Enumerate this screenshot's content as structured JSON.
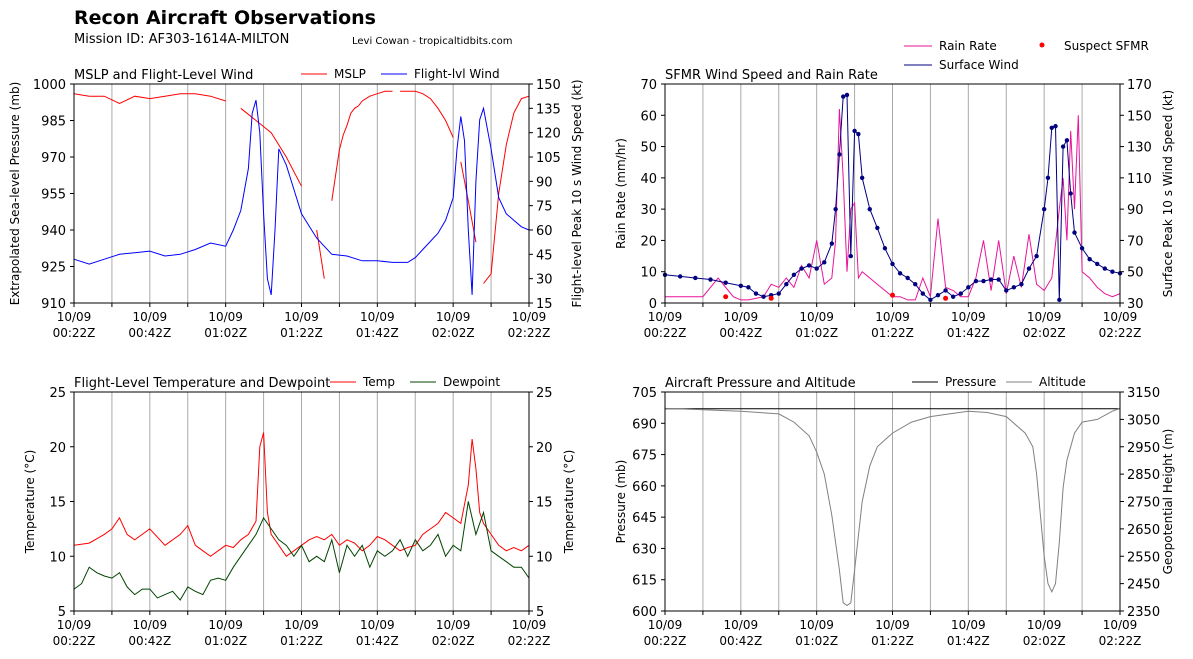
{
  "header": {
    "title": "Recon Aircraft Observations",
    "mission": "Mission ID: AF303-1614A-MILTON",
    "credit": "Levi Cowan - tropicaltidbits.com"
  },
  "colors": {
    "mslp": "#ff0000",
    "flwind": "#0000ff",
    "rain": "#e8149a",
    "sfmr": "#000080",
    "suspect": "#ff0000",
    "temp": "#ff0000",
    "dew": "#004400",
    "pres": "#000000",
    "alt": "#808080",
    "grid": "#aaaaaa"
  },
  "x_ticks": [
    "10/09 00:22Z",
    "10/09 00:42Z",
    "10/09 01:02Z",
    "10/09 01:22Z",
    "10/09 01:42Z",
    "10/09 02:02Z",
    "10/09 02:22Z"
  ],
  "top_legend": {
    "rain": "Rain Rate",
    "sfmr": "Surface Wind",
    "suspect": "Suspect SFMR"
  },
  "chart_data": [
    {
      "id": "p1",
      "type": "line",
      "title": "MSLP and Flight-Level Wind",
      "xlim": [
        0,
        120
      ],
      "ylabel": "Extrapolated Sea-level Pressure (mb)",
      "y2label": "Flight-level Peak 10 s Wind Speed (kt)",
      "ylim": [
        910,
        1000
      ],
      "y2lim": [
        15,
        150
      ],
      "yticks": [
        910,
        925,
        940,
        955,
        970,
        985,
        1000
      ],
      "y2ticks": [
        15,
        30,
        45,
        60,
        75,
        90,
        105,
        120,
        135,
        150
      ],
      "series": [
        {
          "name": "MSLP",
          "axis": "left",
          "color": "#ff0000",
          "x": [
            0,
            4,
            8,
            12,
            16,
            20,
            24,
            28,
            32,
            36,
            40,
            44,
            48,
            52,
            56,
            60,
            62,
            64,
            66,
            68,
            70,
            71,
            72,
            73,
            74,
            75,
            76,
            78,
            80,
            82,
            84,
            86,
            88,
            90,
            92,
            94,
            96,
            98,
            100,
            102,
            104,
            106,
            108,
            110,
            112,
            114,
            116,
            118,
            120
          ],
          "y": [
            996,
            995,
            995,
            992,
            995,
            994,
            995,
            996,
            996,
            995,
            993,
            990,
            985,
            980,
            970,
            958,
            953,
            940,
            920,
            952,
            973,
            979,
            983,
            988,
            990,
            991,
            993,
            995,
            996,
            997,
            997,
            997,
            997,
            997,
            996,
            994,
            990,
            985,
            978,
            968,
            952,
            935,
            918,
            922,
            955,
            975,
            988,
            994,
            995
          ],
          "gaps": [
            [
              40,
              44
            ],
            [
              60,
              64
            ],
            [
              66,
              68
            ],
            [
              84,
              86
            ],
            [
              100,
              102
            ],
            [
              106,
              108
            ]
          ]
        },
        {
          "name": "Flight-lvl Wind",
          "axis": "right",
          "color": "#0000ff",
          "x": [
            0,
            4,
            8,
            12,
            16,
            20,
            24,
            28,
            32,
            36,
            40,
            42,
            44,
            46,
            47,
            48,
            49,
            50,
            51,
            52,
            53,
            54,
            56,
            58,
            60,
            64,
            68,
            72,
            76,
            80,
            84,
            88,
            90,
            92,
            94,
            96,
            98,
            100,
            101,
            102,
            103,
            104,
            105,
            106,
            107,
            108,
            110,
            112,
            114,
            116,
            118,
            120
          ],
          "y": [
            42,
            39,
            42,
            45,
            46,
            47,
            44,
            45,
            48,
            52,
            50,
            60,
            72,
            98,
            132,
            140,
            120,
            70,
            30,
            20,
            60,
            110,
            100,
            85,
            70,
            55,
            45,
            44,
            41,
            41,
            40,
            40,
            43,
            48,
            53,
            58,
            66,
            80,
            110,
            130,
            115,
            60,
            20,
            90,
            128,
            135,
            110,
            80,
            70,
            66,
            62,
            60
          ]
        }
      ]
    },
    {
      "id": "p2",
      "type": "line",
      "title": "SFMR Wind Speed and Rain Rate",
      "xlim": [
        0,
        120
      ],
      "ylabel": "Rain Rate (mm/hr)",
      "y2label": "Surface Peak 10 s Wind Speed (kt)",
      "ylim": [
        0,
        70
      ],
      "y2lim": [
        30,
        170
      ],
      "yticks": [
        0,
        10,
        20,
        30,
        40,
        50,
        60,
        70
      ],
      "y2ticks": [
        30,
        50,
        70,
        90,
        110,
        130,
        150,
        170
      ],
      "series": [
        {
          "name": "Rain Rate",
          "axis": "left",
          "color": "#e8149a",
          "x": [
            0,
            6,
            10,
            14,
            18,
            20,
            22,
            26,
            28,
            30,
            32,
            34,
            36,
            38,
            40,
            42,
            44,
            45,
            46,
            47,
            48,
            49,
            50,
            51,
            52,
            54,
            56,
            58,
            60,
            62,
            64,
            66,
            68,
            70,
            72,
            74,
            76,
            78,
            80,
            82,
            84,
            86,
            88,
            90,
            92,
            94,
            96,
            98,
            100,
            102,
            104,
            105,
            106,
            107,
            108,
            109,
            110,
            112,
            114,
            116,
            118,
            120
          ],
          "y": [
            2,
            2,
            2,
            8,
            2,
            1,
            1,
            2,
            6,
            5,
            8,
            5,
            12,
            8,
            20,
            6,
            8,
            20,
            62,
            40,
            10,
            30,
            32,
            8,
            10,
            8,
            6,
            4,
            2,
            2,
            1,
            1,
            8,
            2,
            27,
            5,
            4,
            2,
            2,
            8,
            20,
            4,
            20,
            3,
            15,
            5,
            22,
            6,
            4,
            8,
            30,
            40,
            20,
            55,
            30,
            60,
            10,
            8,
            5,
            3,
            2,
            3
          ]
        },
        {
          "name": "Surface Wind",
          "axis": "right",
          "color": "#000080",
          "x": [
            0,
            4,
            8,
            12,
            16,
            20,
            22,
            24,
            26,
            28,
            30,
            32,
            34,
            36,
            38,
            40,
            42,
            44,
            45,
            46,
            47,
            48,
            49,
            50,
            51,
            52,
            54,
            56,
            58,
            60,
            62,
            64,
            66,
            68,
            70,
            72,
            74,
            76,
            78,
            80,
            82,
            84,
            86,
            88,
            90,
            92,
            94,
            96,
            98,
            100,
            101,
            102,
            103,
            104,
            105,
            106,
            107,
            108,
            110,
            112,
            114,
            116,
            118,
            120
          ],
          "y": [
            48,
            47,
            46,
            45,
            43,
            41,
            40,
            36,
            34,
            35,
            36,
            42,
            48,
            52,
            54,
            52,
            56,
            68,
            90,
            125,
            162,
            163,
            60,
            140,
            138,
            110,
            90,
            78,
            65,
            55,
            49,
            46,
            42,
            36,
            32,
            35,
            38,
            34,
            36,
            40,
            44,
            44,
            45,
            45,
            38,
            40,
            42,
            52,
            60,
            90,
            110,
            142,
            143,
            32,
            130,
            134,
            100,
            75,
            65,
            58,
            55,
            52,
            50,
            49
          ]
        },
        {
          "name": "Suspect SFMR",
          "axis": "right",
          "color": "#ff0000",
          "x": [
            16,
            28,
            60,
            74
          ],
          "y": [
            34,
            33,
            35,
            33
          ]
        }
      ]
    },
    {
      "id": "p3",
      "type": "line",
      "title": "Flight-Level Temperature and Dewpoint",
      "xlim": [
        0,
        120
      ],
      "ylabel": "Temperature (°C)",
      "y2label": "Temperature (°C)",
      "ylim": [
        5,
        25
      ],
      "y2lim": [
        5,
        25
      ],
      "yticks": [
        5,
        10,
        15,
        20,
        25
      ],
      "y2ticks": [
        5,
        10,
        15,
        20,
        25
      ],
      "series": [
        {
          "name": "Temp",
          "axis": "left",
          "color": "#ff0000",
          "x": [
            0,
            4,
            8,
            10,
            12,
            14,
            16,
            20,
            24,
            28,
            30,
            32,
            34,
            36,
            38,
            40,
            42,
            44,
            46,
            48,
            49,
            50,
            51,
            52,
            54,
            56,
            58,
            60,
            62,
            64,
            66,
            68,
            70,
            72,
            74,
            76,
            78,
            80,
            82,
            84,
            86,
            88,
            90,
            92,
            94,
            96,
            98,
            100,
            102,
            104,
            105,
            106,
            107,
            108,
            110,
            112,
            114,
            116,
            118,
            120
          ],
          "y": [
            11,
            11.2,
            12,
            12.5,
            13.5,
            12,
            11.5,
            12.5,
            11,
            12,
            12.8,
            11,
            10.5,
            10,
            10.5,
            11,
            10.8,
            11.5,
            12,
            13.2,
            20,
            21.3,
            14,
            12,
            11,
            10,
            10.5,
            11,
            11.5,
            11.8,
            11.5,
            12,
            11,
            11.5,
            11.2,
            10.5,
            11,
            11.8,
            11.5,
            11,
            10.5,
            10.8,
            11,
            12,
            12.5,
            13,
            14,
            13.5,
            13,
            16.5,
            20.7,
            18,
            14,
            13,
            12,
            11,
            10.5,
            10.8,
            10.5,
            11
          ]
        },
        {
          "name": "Dewpoint",
          "axis": "left",
          "color": "#004400",
          "x": [
            0,
            2,
            4,
            6,
            8,
            10,
            12,
            14,
            16,
            18,
            20,
            22,
            24,
            26,
            28,
            30,
            32,
            34,
            36,
            38,
            40,
            42,
            44,
            46,
            48,
            50,
            52,
            54,
            56,
            58,
            60,
            62,
            64,
            66,
            68,
            70,
            72,
            74,
            76,
            78,
            80,
            82,
            84,
            86,
            88,
            90,
            92,
            94,
            96,
            98,
            100,
            102,
            104,
            106,
            108,
            110,
            112,
            114,
            116,
            118,
            120
          ],
          "y": [
            7,
            7.5,
            9,
            8.5,
            8.2,
            8,
            8.5,
            7.2,
            6.5,
            7,
            7,
            6.2,
            6.5,
            6.8,
            6,
            7.2,
            6.8,
            6.5,
            7.8,
            8,
            7.8,
            9,
            10,
            11,
            12,
            13.5,
            12.5,
            11.5,
            11,
            10,
            11,
            9.5,
            10,
            9.5,
            11.5,
            8.5,
            11,
            10,
            11,
            9,
            10.5,
            10,
            10.5,
            11.5,
            10,
            11.5,
            10.5,
            11,
            12,
            10,
            11,
            10.5,
            15,
            12,
            14,
            10.5,
            10,
            9.5,
            9,
            9,
            8
          ]
        }
      ]
    },
    {
      "id": "p4",
      "type": "line",
      "title": "Aircraft Pressure and Altitude",
      "xlim": [
        0,
        120
      ],
      "ylabel": "Pressure (mb)",
      "y2label": "Geopotential Height (m)",
      "ylim": [
        600,
        705
      ],
      "y2lim": [
        2350,
        3150
      ],
      "yticks": [
        600,
        615,
        630,
        645,
        660,
        675,
        690,
        705
      ],
      "y2ticks": [
        2350,
        2450,
        2550,
        2650,
        2750,
        2850,
        2950,
        3050,
        3150
      ],
      "series": [
        {
          "name": "Pressure",
          "axis": "left",
          "color": "#000000",
          "x": [
            0,
            10,
            20,
            30,
            40,
            50,
            60,
            70,
            80,
            90,
            100,
            110,
            120
          ],
          "y": [
            697,
            697,
            697,
            697,
            697,
            697,
            697,
            697,
            697,
            697,
            697,
            697,
            697
          ]
        },
        {
          "name": "Altitude",
          "axis": "right",
          "color": "#808080",
          "x": [
            0,
            10,
            20,
            30,
            34,
            38,
            40,
            42,
            44,
            46,
            47,
            48,
            49,
            50,
            52,
            54,
            56,
            60,
            65,
            70,
            75,
            80,
            85,
            90,
            95,
            97,
            98,
            99,
            100,
            101,
            102,
            103,
            104,
            105,
            106,
            108,
            110,
            114,
            118,
            120
          ],
          "y": [
            3090,
            3085,
            3080,
            3070,
            3040,
            2990,
            2930,
            2850,
            2700,
            2500,
            2380,
            2370,
            2380,
            2500,
            2750,
            2880,
            2950,
            3000,
            3040,
            3060,
            3070,
            3080,
            3075,
            3060,
            3000,
            2950,
            2850,
            2700,
            2550,
            2450,
            2420,
            2450,
            2600,
            2800,
            2900,
            3000,
            3040,
            3050,
            3080,
            3090
          ]
        }
      ]
    }
  ]
}
